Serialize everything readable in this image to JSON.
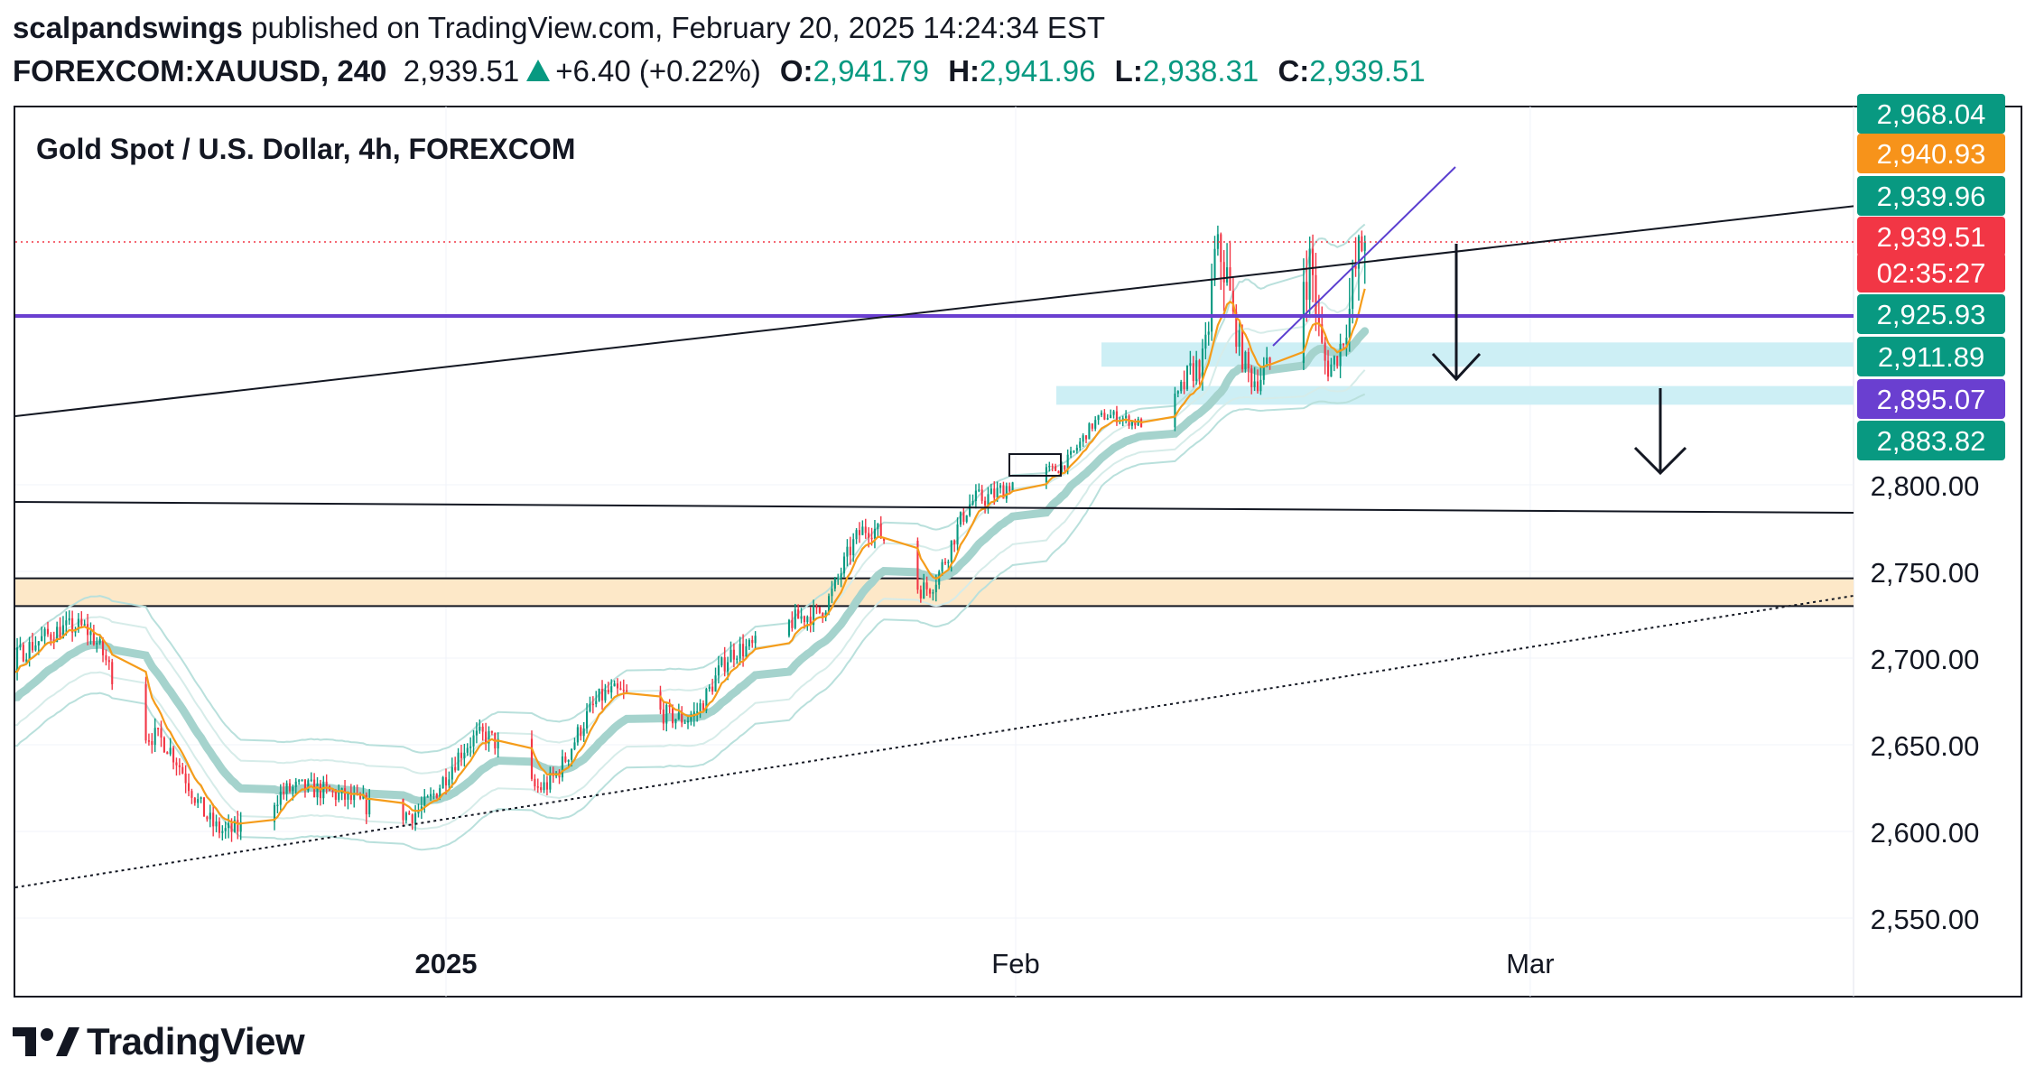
{
  "header": {
    "author": "scalpandswings",
    "published_text": "published on TradingView.com, February 20, 2025 14:24:34 EST",
    "symbol": "FOREXCOM:XAUUSD, 240",
    "last": "2,939.51",
    "change": "+6.40 (+0.22%)",
    "o_label": "O:",
    "o_value": "2,941.79",
    "h_label": "H:",
    "h_value": "2,941.96",
    "l_label": "L:",
    "l_value": "2,938.31",
    "c_label": "C:",
    "c_value": "2,939.51"
  },
  "brand": {
    "name": "TradingView",
    "logo_icon": "tradingview-logo-icon"
  },
  "colors": {
    "up": "#089981",
    "down": "#f23645",
    "ema": "#f59c1a",
    "band": "#a5d3cd",
    "purple": "#6a3fd0",
    "zone_cyan": "#cdeff5",
    "zone_orange": "#fde8c8"
  },
  "chart_data": {
    "type": "candlestick",
    "title": "Gold Spot / U.S. Dollar, 4h, FOREXCOM",
    "y_scale": "non-linear",
    "y_ticks": [
      2550,
      2600,
      2650,
      2700,
      2750,
      2800
    ],
    "y_tick_labels": [
      "2,550.00",
      "2,600.00",
      "2,650.00",
      "2,700.00",
      "2,750.00",
      "2,800.00"
    ],
    "x_tick_labels": [
      "2025",
      "Feb",
      "Mar"
    ],
    "x_range": [
      "2024-12-01",
      "2025-03-23"
    ],
    "x_ticks": [
      "2025-01-01",
      "2025-02-01",
      "2025-03-01"
    ],
    "price_labels": [
      {
        "text": "2,968.04",
        "kind": "green"
      },
      {
        "text": "2,940.93",
        "kind": "orange"
      },
      {
        "text": "2,939.96",
        "kind": "green"
      },
      {
        "text": "2,939.51",
        "kind": "red"
      },
      {
        "text": "02:35:27",
        "kind": "red"
      },
      {
        "text": "2,925.93",
        "kind": "green"
      },
      {
        "text": "2,911.89",
        "kind": "green"
      },
      {
        "text": "2,895.07",
        "kind": "purple"
      },
      {
        "text": "2,883.82",
        "kind": "green"
      }
    ],
    "key_prices": [
      {
        "date": "2024-12-01",
        "price": 2640
      },
      {
        "date": "2024-12-06",
        "price": 2690
      },
      {
        "date": "2024-12-12",
        "price": 2718
      },
      {
        "date": "2024-12-16",
        "price": 2655
      },
      {
        "date": "2024-12-20",
        "price": 2600
      },
      {
        "date": "2024-12-24",
        "price": 2625
      },
      {
        "date": "2024-12-30",
        "price": 2610
      },
      {
        "date": "2025-01-03",
        "price": 2655
      },
      {
        "date": "2025-01-06",
        "price": 2625
      },
      {
        "date": "2025-01-10",
        "price": 2680
      },
      {
        "date": "2025-01-14",
        "price": 2665
      },
      {
        "date": "2025-01-17",
        "price": 2705
      },
      {
        "date": "2025-01-21",
        "price": 2725
      },
      {
        "date": "2025-01-24",
        "price": 2775
      },
      {
        "date": "2025-01-27",
        "price": 2740
      },
      {
        "date": "2025-01-30",
        "price": 2792
      },
      {
        "date": "2025-02-03",
        "price": 2815
      },
      {
        "date": "2025-02-06",
        "price": 2870
      },
      {
        "date": "2025-02-08",
        "price": 2862
      },
      {
        "date": "2025-02-11",
        "price": 2905
      },
      {
        "date": "2025-02-12",
        "price": 2938
      },
      {
        "date": "2025-02-14",
        "price": 2900
      },
      {
        "date": "2025-02-17",
        "price": 2935
      },
      {
        "date": "2025-02-18",
        "price": 2905
      },
      {
        "date": "2025-02-20",
        "price": 2939.5
      }
    ],
    "drawings": {
      "horizontal_line_purple": 2925.93,
      "zone_upper": [
        2905,
        2915
      ],
      "zone_lower": [
        2881,
        2897
      ],
      "zone_orange": [
        2730,
        2746
      ]
    }
  }
}
